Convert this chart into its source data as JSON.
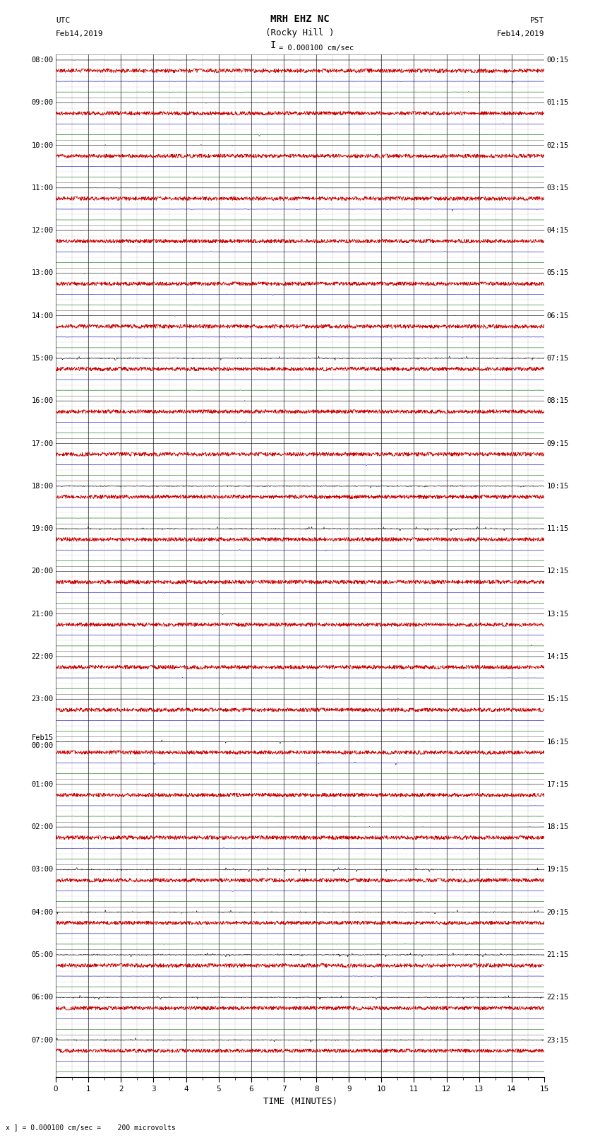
{
  "title_line1": "MRH EHZ NC",
  "title_line2": "(Rocky Hill )",
  "scale_label": "I = 0.000100 cm/sec",
  "left_header_line1": "UTC",
  "left_header_line2": "Feb14,2019",
  "right_header_line1": "PST",
  "right_header_line2": "Feb14,2019",
  "bottom_label": "TIME (MINUTES)",
  "bottom_note": "x ] = 0.000100 cm/sec =    200 microvolts",
  "n_rows": 96,
  "fig_width": 8.5,
  "fig_height": 16.13,
  "bg_color": "white",
  "trace_color_black": "#000000",
  "trace_color_red": "#cc0000",
  "trace_color_blue": "#0000bb",
  "trace_color_green": "#006600",
  "xlabel_fontsize": 9,
  "title_fontsize": 10,
  "tick_fontsize": 7.5,
  "label_fontsize": 8,
  "n_minutes": 15,
  "utc_label_list": [
    [
      0,
      "08:00"
    ],
    [
      4,
      "09:00"
    ],
    [
      8,
      "10:00"
    ],
    [
      12,
      "11:00"
    ],
    [
      16,
      "12:00"
    ],
    [
      20,
      "13:00"
    ],
    [
      24,
      "14:00"
    ],
    [
      28,
      "15:00"
    ],
    [
      32,
      "16:00"
    ],
    [
      36,
      "17:00"
    ],
    [
      40,
      "18:00"
    ],
    [
      44,
      "19:00"
    ],
    [
      48,
      "20:00"
    ],
    [
      52,
      "21:00"
    ],
    [
      56,
      "22:00"
    ],
    [
      60,
      "23:00"
    ],
    [
      64,
      "Feb15\n00:00"
    ],
    [
      68,
      "01:00"
    ],
    [
      72,
      "02:00"
    ],
    [
      76,
      "03:00"
    ],
    [
      80,
      "04:00"
    ],
    [
      84,
      "05:00"
    ],
    [
      88,
      "06:00"
    ],
    [
      92,
      "07:00"
    ]
  ],
  "pst_label_list": [
    [
      0,
      "00:15"
    ],
    [
      4,
      "01:15"
    ],
    [
      8,
      "02:15"
    ],
    [
      12,
      "03:15"
    ],
    [
      16,
      "04:15"
    ],
    [
      20,
      "05:15"
    ],
    [
      24,
      "06:15"
    ],
    [
      28,
      "07:15"
    ],
    [
      32,
      "08:15"
    ],
    [
      36,
      "09:15"
    ],
    [
      40,
      "10:15"
    ],
    [
      44,
      "11:15"
    ],
    [
      48,
      "12:15"
    ],
    [
      52,
      "13:15"
    ],
    [
      56,
      "14:15"
    ],
    [
      60,
      "15:15"
    ],
    [
      64,
      "16:15"
    ],
    [
      68,
      "17:15"
    ],
    [
      72,
      "18:15"
    ],
    [
      76,
      "19:15"
    ],
    [
      80,
      "20:15"
    ],
    [
      84,
      "21:15"
    ],
    [
      88,
      "22:15"
    ],
    [
      92,
      "23:15"
    ]
  ],
  "row_noise_scales": {
    "black_default": 0.025,
    "red_default": 0.3,
    "blue_default": 0.04,
    "green_default": 0.02,
    "high_activity_rows": [
      28,
      29,
      30,
      31,
      64,
      65,
      66,
      67,
      40,
      41,
      44,
      45,
      76,
      77,
      78,
      79,
      80,
      84,
      85,
      86,
      87,
      88,
      89,
      90,
      91,
      92,
      93,
      94,
      95
    ],
    "very_high_rows": [
      28,
      40,
      41,
      44,
      45,
      76,
      77,
      78,
      79,
      80,
      84,
      85,
      86,
      87,
      88,
      89,
      90,
      91,
      92,
      93,
      94,
      95
    ]
  }
}
